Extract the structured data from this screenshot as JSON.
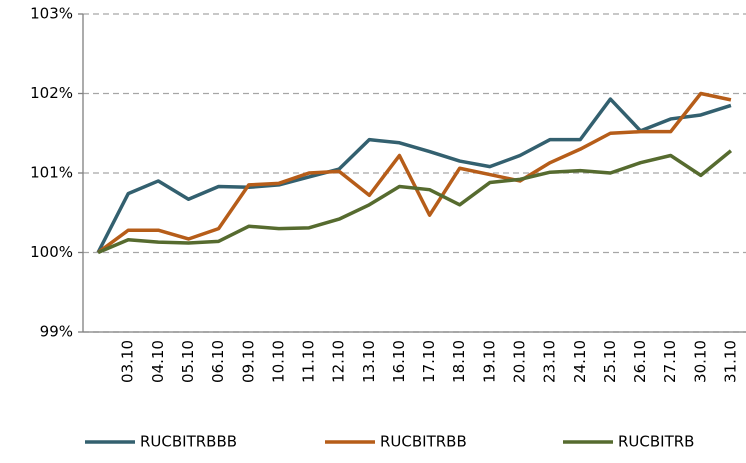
{
  "chart_data": {
    "type": "line",
    "categories": [
      null,
      "03.10",
      "04.10",
      "05.10",
      "06.10",
      "09.10",
      "10.10",
      "11.10",
      "12.10",
      "13.10",
      "16.10",
      "17.10",
      "18.10",
      "19.10",
      "20.10",
      "23.10",
      "24.10",
      "25.10",
      "26.10",
      "27.10",
      "30.10",
      "31.10"
    ],
    "series": [
      {
        "name": "RUCBITRBBB",
        "color": "#33606f",
        "values": [
          100,
          100.74,
          100.9,
          100.67,
          100.83,
          100.82,
          100.85,
          100.95,
          101.05,
          101.42,
          101.38,
          101.27,
          101.15,
          101.08,
          101.22,
          101.42,
          101.42,
          101.93,
          101.53,
          101.68,
          101.73,
          101.85
        ]
      },
      {
        "name": "RUCBITRBB",
        "color": "#b65d19",
        "values": [
          100,
          100.28,
          100.28,
          100.17,
          100.3,
          100.85,
          100.87,
          101.0,
          101.02,
          100.72,
          101.22,
          100.47,
          101.06,
          100.98,
          100.9,
          101.13,
          101.3,
          101.5,
          101.52,
          101.52,
          102.0,
          101.92
        ]
      },
      {
        "name": "RUCBITRB",
        "color": "#566b2f",
        "values": [
          100,
          100.16,
          100.13,
          100.12,
          100.14,
          100.33,
          100.3,
          100.31,
          100.42,
          100.6,
          100.83,
          100.79,
          100.6,
          100.88,
          100.92,
          101.01,
          101.03,
          101.0,
          101.13,
          101.22,
          100.97,
          101.28
        ]
      }
    ],
    "ylim": [
      99,
      103
    ],
    "yticks": [
      {
        "value": 99,
        "label": "99%"
      },
      {
        "value": 100,
        "label": "100%"
      },
      {
        "value": 101,
        "label": "101%"
      },
      {
        "value": 102,
        "label": "102%"
      },
      {
        "value": 103,
        "label": "103%"
      }
    ],
    "grid": true,
    "legend": "bottom"
  }
}
